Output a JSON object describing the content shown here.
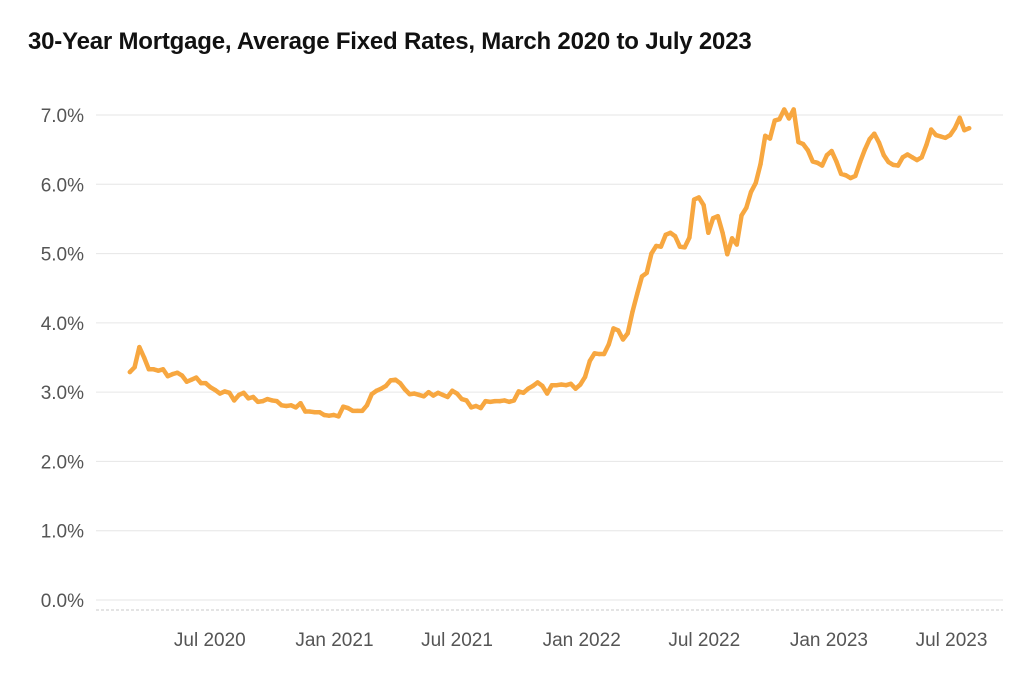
{
  "colors": {
    "line": "#f7a740",
    "grid": "#e6e6e6",
    "baseline": "#c8c8c8",
    "tick_text": "#555555",
    "title_text": "#111111"
  },
  "chart_data": {
    "type": "line",
    "title": "30-Year Mortgage, Average Fixed Rates, March 2020 to July 2023",
    "xlabel": "",
    "ylabel": "",
    "ylim": [
      0,
      7.0
    ],
    "xlim": [
      "2020-01-15",
      "2023-09-15"
    ],
    "grid": true,
    "legend": "none",
    "y_ticks": [
      {
        "value": 0,
        "label": "0.0%"
      },
      {
        "value": 1,
        "label": "1.0%"
      },
      {
        "value": 2,
        "label": "2.0%"
      },
      {
        "value": 3,
        "label": "3.0%"
      },
      {
        "value": 4,
        "label": "4.0%"
      },
      {
        "value": 5,
        "label": "5.0%"
      },
      {
        "value": 6,
        "label": "6.0%"
      },
      {
        "value": 7,
        "label": "7.0%"
      }
    ],
    "x_ticks": [
      {
        "value": "2020-07-01",
        "label": "Jul 2020"
      },
      {
        "value": "2021-01-01",
        "label": "Jan 2021"
      },
      {
        "value": "2021-07-01",
        "label": "Jul 2021"
      },
      {
        "value": "2022-01-01",
        "label": "Jan 2022"
      },
      {
        "value": "2022-07-01",
        "label": "Jul 2022"
      },
      {
        "value": "2023-01-01",
        "label": "Jan 2023"
      },
      {
        "value": "2023-07-01",
        "label": "Jul 2023"
      }
    ],
    "series": [
      {
        "x": [
          "2020-03-05",
          "2020-03-12",
          "2020-03-19",
          "2020-03-26",
          "2020-04-02",
          "2020-04-09",
          "2020-04-16",
          "2020-04-23",
          "2020-04-30",
          "2020-05-07",
          "2020-05-14",
          "2020-05-21",
          "2020-05-28",
          "2020-06-04",
          "2020-06-11",
          "2020-06-18",
          "2020-06-25",
          "2020-07-02",
          "2020-07-09",
          "2020-07-16",
          "2020-07-23",
          "2020-07-30",
          "2020-08-06",
          "2020-08-13",
          "2020-08-20",
          "2020-08-27",
          "2020-09-03",
          "2020-09-10",
          "2020-09-17",
          "2020-09-24",
          "2020-10-01",
          "2020-10-08",
          "2020-10-15",
          "2020-10-22",
          "2020-10-29",
          "2020-11-05",
          "2020-11-12",
          "2020-11-19",
          "2020-11-26",
          "2020-12-03",
          "2020-12-10",
          "2020-12-17",
          "2020-12-24",
          "2020-12-31",
          "2021-01-07",
          "2021-01-14",
          "2021-01-21",
          "2021-01-28",
          "2021-02-04",
          "2021-02-11",
          "2021-02-18",
          "2021-02-25",
          "2021-03-04",
          "2021-03-11",
          "2021-03-18",
          "2021-03-25",
          "2021-04-01",
          "2021-04-08",
          "2021-04-15",
          "2021-04-22",
          "2021-04-29",
          "2021-05-06",
          "2021-05-13",
          "2021-05-20",
          "2021-05-27",
          "2021-06-03",
          "2021-06-10",
          "2021-06-17",
          "2021-06-24",
          "2021-07-01",
          "2021-07-08",
          "2021-07-15",
          "2021-07-22",
          "2021-07-29",
          "2021-08-05",
          "2021-08-12",
          "2021-08-19",
          "2021-08-26",
          "2021-09-02",
          "2021-09-09",
          "2021-09-16",
          "2021-09-23",
          "2021-09-30",
          "2021-10-07",
          "2021-10-14",
          "2021-10-21",
          "2021-10-28",
          "2021-11-04",
          "2021-11-11",
          "2021-11-18",
          "2021-11-25",
          "2021-12-02",
          "2021-12-09",
          "2021-12-16",
          "2021-12-23",
          "2021-12-30",
          "2022-01-06",
          "2022-01-13",
          "2022-01-20",
          "2022-01-27",
          "2022-02-03",
          "2022-02-10",
          "2022-02-17",
          "2022-02-24",
          "2022-03-03",
          "2022-03-10",
          "2022-03-17",
          "2022-03-24",
          "2022-03-31",
          "2022-04-07",
          "2022-04-14",
          "2022-04-21",
          "2022-04-28",
          "2022-05-05",
          "2022-05-12",
          "2022-05-19",
          "2022-05-26",
          "2022-06-02",
          "2022-06-09",
          "2022-06-16",
          "2022-06-23",
          "2022-06-30",
          "2022-07-07",
          "2022-07-14",
          "2022-07-21",
          "2022-07-28",
          "2022-08-04",
          "2022-08-11",
          "2022-08-18",
          "2022-08-25",
          "2022-09-01",
          "2022-09-08",
          "2022-09-15",
          "2022-09-22",
          "2022-09-29",
          "2022-10-06",
          "2022-10-13",
          "2022-10-20",
          "2022-10-27",
          "2022-11-03",
          "2022-11-10",
          "2022-11-17",
          "2022-11-24",
          "2022-12-01",
          "2022-12-08",
          "2022-12-15",
          "2022-12-22",
          "2022-12-29",
          "2023-01-05",
          "2023-01-12",
          "2023-01-19",
          "2023-01-26",
          "2023-02-02",
          "2023-02-09",
          "2023-02-16",
          "2023-02-23",
          "2023-03-02",
          "2023-03-09",
          "2023-03-16",
          "2023-03-23",
          "2023-03-30",
          "2023-04-06",
          "2023-04-13",
          "2023-04-20",
          "2023-04-27",
          "2023-05-04",
          "2023-05-11",
          "2023-05-18",
          "2023-05-25",
          "2023-06-01",
          "2023-06-08",
          "2023-06-15",
          "2023-06-22",
          "2023-06-29",
          "2023-07-06",
          "2023-07-13",
          "2023-07-20",
          "2023-07-27"
        ],
        "values": [
          3.29,
          3.36,
          3.65,
          3.5,
          3.33,
          3.33,
          3.31,
          3.33,
          3.23,
          3.26,
          3.28,
          3.24,
          3.15,
          3.18,
          3.21,
          3.13,
          3.13,
          3.07,
          3.03,
          2.98,
          3.01,
          2.99,
          2.88,
          2.96,
          2.99,
          2.91,
          2.93,
          2.86,
          2.87,
          2.9,
          2.88,
          2.87,
          2.81,
          2.8,
          2.81,
          2.78,
          2.84,
          2.72,
          2.72,
          2.71,
          2.71,
          2.67,
          2.66,
          2.67,
          2.65,
          2.79,
          2.77,
          2.73,
          2.73,
          2.73,
          2.81,
          2.97,
          3.02,
          3.05,
          3.09,
          3.17,
          3.18,
          3.13,
          3.04,
          2.97,
          2.98,
          2.96,
          2.94,
          3.0,
          2.95,
          2.99,
          2.96,
          2.93,
          3.02,
          2.98,
          2.9,
          2.88,
          2.78,
          2.8,
          2.77,
          2.87,
          2.86,
          2.87,
          2.87,
          2.88,
          2.86,
          2.88,
          3.01,
          2.99,
          3.05,
          3.09,
          3.14,
          3.09,
          2.98,
          3.1,
          3.1,
          3.11,
          3.1,
          3.12,
          3.05,
          3.11,
          3.22,
          3.45,
          3.56,
          3.55,
          3.55,
          3.69,
          3.92,
          3.89,
          3.76,
          3.85,
          4.16,
          4.42,
          4.67,
          4.72,
          5.0,
          5.11,
          5.1,
          5.27,
          5.3,
          5.25,
          5.1,
          5.09,
          5.23,
          5.78,
          5.81,
          5.7,
          5.3,
          5.51,
          5.54,
          5.3,
          4.99,
          5.22,
          5.13,
          5.55,
          5.66,
          5.89,
          6.02,
          6.29,
          6.7,
          6.66,
          6.92,
          6.94,
          7.08,
          6.95,
          7.08,
          6.61,
          6.58,
          6.49,
          6.33,
          6.31,
          6.27,
          6.42,
          6.48,
          6.33,
          6.15,
          6.13,
          6.09,
          6.12,
          6.32,
          6.5,
          6.65,
          6.73,
          6.6,
          6.42,
          6.32,
          6.28,
          6.27,
          6.39,
          6.43,
          6.39,
          6.35,
          6.39,
          6.57,
          6.79,
          6.71,
          6.69,
          6.67,
          6.71,
          6.81,
          6.96,
          6.78,
          6.81
        ]
      }
    ]
  }
}
